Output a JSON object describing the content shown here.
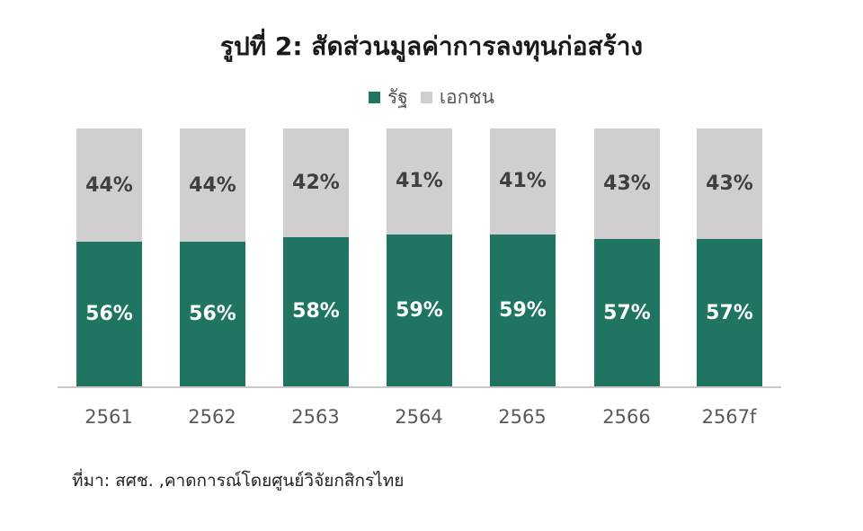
{
  "title": "รูปที่ 2: สัดส่วนมูลค่าการลงทุนก่อสร้าง",
  "legend": [
    {
      "label": "รัฐ",
      "color": "#207462"
    },
    {
      "label": "เอกชน",
      "color": "#d0cecf"
    }
  ],
  "source": "ที่มา: สศช. ,คาดการณ์โดยศูนย์วิจัยกสิกรไทย",
  "colors": {
    "public": "#207462",
    "private": "#d0cecf",
    "axis": "#c8c8c8"
  },
  "chart_data": {
    "type": "bar",
    "stacked": true,
    "normalized_percent": true,
    "title": "รูปที่ 2: สัดส่วนมูลค่าการลงทุนก่อสร้าง",
    "xlabel": "",
    "ylabel": "",
    "ylim": [
      0,
      100
    ],
    "grid": false,
    "legend_position": "top",
    "categories": [
      "2561",
      "2562",
      "2563",
      "2564",
      "2565",
      "2566",
      "2567f"
    ],
    "series": [
      {
        "name": "รัฐ",
        "color": "#207462",
        "values": [
          56,
          56,
          58,
          59,
          59,
          57,
          57
        ],
        "labels": [
          "56%",
          "56%",
          "58%",
          "59%",
          "59%",
          "57%",
          "57%"
        ]
      },
      {
        "name": "เอกชน",
        "color": "#d0cecf",
        "values": [
          44,
          44,
          42,
          41,
          41,
          43,
          43
        ],
        "labels": [
          "44%",
          "44%",
          "42%",
          "41%",
          "41%",
          "43%",
          "43%"
        ]
      }
    ]
  }
}
